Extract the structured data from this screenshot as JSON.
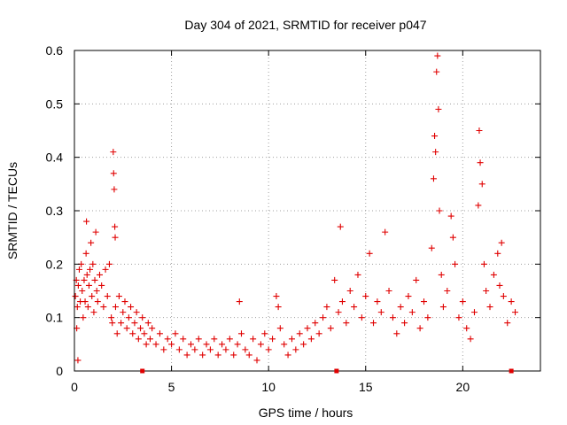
{
  "colors": {
    "series": "#e00000",
    "axis": "#000000",
    "grid": "#a0a0a0"
  },
  "chart_data": {
    "type": "scatter",
    "title": "Day 304 of 2021, SRMTID for receiver p047",
    "xlabel": "GPS time / hours",
    "ylabel": "SRMTID / TECUs",
    "xlim": [
      0,
      24
    ],
    "ylim": [
      0,
      0.6
    ],
    "xticks": [
      0,
      5,
      10,
      15,
      20
    ],
    "xtick_labels": [
      "0",
      "5",
      "10",
      "15",
      "20"
    ],
    "yticks": [
      0,
      0.1,
      0.2,
      0.3,
      0.4,
      0.5,
      0.6
    ],
    "ytick_labels": [
      "0",
      "0.1",
      "0.2",
      "0.3",
      "0.4",
      "0.5",
      "0.6"
    ],
    "grid": true,
    "marker": "plus",
    "series": [
      {
        "name": "SRMTID p047",
        "points": [
          [
            0.05,
            0.14
          ],
          [
            0.1,
            0.17
          ],
          [
            0.12,
            0.08
          ],
          [
            0.15,
            0.12
          ],
          [
            0.18,
            0.02
          ],
          [
            0.2,
            0.16
          ],
          [
            0.25,
            0.19
          ],
          [
            0.3,
            0.13
          ],
          [
            0.35,
            0.2
          ],
          [
            0.4,
            0.15
          ],
          [
            0.45,
            0.1
          ],
          [
            0.5,
            0.17
          ],
          [
            0.55,
            0.13
          ],
          [
            0.6,
            0.22
          ],
          [
            0.62,
            0.28
          ],
          [
            0.65,
            0.18
          ],
          [
            0.7,
            0.12
          ],
          [
            0.75,
            0.16
          ],
          [
            0.8,
            0.19
          ],
          [
            0.85,
            0.24
          ],
          [
            0.9,
            0.14
          ],
          [
            0.95,
            0.2
          ],
          [
            1.0,
            0.11
          ],
          [
            1.05,
            0.17
          ],
          [
            1.1,
            0.26
          ],
          [
            1.15,
            0.15
          ],
          [
            1.2,
            0.13
          ],
          [
            1.3,
            0.18
          ],
          [
            1.4,
            0.16
          ],
          [
            1.5,
            0.12
          ],
          [
            1.6,
            0.19
          ],
          [
            1.7,
            0.14
          ],
          [
            1.8,
            0.2
          ],
          [
            1.9,
            0.1
          ],
          [
            1.95,
            0.09
          ],
          [
            2.0,
            0.41
          ],
          [
            2.02,
            0.37
          ],
          [
            2.05,
            0.34
          ],
          [
            2.08,
            0.27
          ],
          [
            2.1,
            0.25
          ],
          [
            2.12,
            0.12
          ],
          [
            2.2,
            0.07
          ],
          [
            2.3,
            0.14
          ],
          [
            2.4,
            0.09
          ],
          [
            2.5,
            0.11
          ],
          [
            2.6,
            0.13
          ],
          [
            2.7,
            0.08
          ],
          [
            2.8,
            0.1
          ],
          [
            2.9,
            0.12
          ],
          [
            3.0,
            0.07
          ],
          [
            3.1,
            0.09
          ],
          [
            3.2,
            0.11
          ],
          [
            3.3,
            0.06
          ],
          [
            3.4,
            0.08
          ],
          [
            3.5,
            0.1
          ],
          [
            3.6,
            0.07
          ],
          [
            3.7,
            0.05
          ],
          [
            3.8,
            0.09
          ],
          [
            3.9,
            0.06
          ],
          [
            4.0,
            0.08
          ],
          [
            4.2,
            0.05
          ],
          [
            4.4,
            0.07
          ],
          [
            4.6,
            0.04
          ],
          [
            4.8,
            0.06
          ],
          [
            5.0,
            0.05
          ],
          [
            5.2,
            0.07
          ],
          [
            5.4,
            0.04
          ],
          [
            5.6,
            0.06
          ],
          [
            5.8,
            0.03
          ],
          [
            6.0,
            0.05
          ],
          [
            6.2,
            0.04
          ],
          [
            6.4,
            0.06
          ],
          [
            6.6,
            0.03
          ],
          [
            6.8,
            0.05
          ],
          [
            7.0,
            0.04
          ],
          [
            7.2,
            0.06
          ],
          [
            7.4,
            0.03
          ],
          [
            7.6,
            0.05
          ],
          [
            7.8,
            0.04
          ],
          [
            8.0,
            0.06
          ],
          [
            8.2,
            0.03
          ],
          [
            8.4,
            0.05
          ],
          [
            8.5,
            0.13
          ],
          [
            8.6,
            0.07
          ],
          [
            8.8,
            0.04
          ],
          [
            9.0,
            0.03
          ],
          [
            9.2,
            0.06
          ],
          [
            9.4,
            0.02
          ],
          [
            9.6,
            0.05
          ],
          [
            9.8,
            0.07
          ],
          [
            10.0,
            0.04
          ],
          [
            10.2,
            0.06
          ],
          [
            10.4,
            0.14
          ],
          [
            10.5,
            0.12
          ],
          [
            10.6,
            0.08
          ],
          [
            10.8,
            0.05
          ],
          [
            11.0,
            0.03
          ],
          [
            11.2,
            0.06
          ],
          [
            11.4,
            0.04
          ],
          [
            11.6,
            0.07
          ],
          [
            11.8,
            0.05
          ],
          [
            12.0,
            0.08
          ],
          [
            12.2,
            0.06
          ],
          [
            12.4,
            0.09
          ],
          [
            12.6,
            0.07
          ],
          [
            12.8,
            0.1
          ],
          [
            13.0,
            0.12
          ],
          [
            13.2,
            0.08
          ],
          [
            13.4,
            0.17
          ],
          [
            13.6,
            0.11
          ],
          [
            13.7,
            0.27
          ],
          [
            13.8,
            0.13
          ],
          [
            14.0,
            0.09
          ],
          [
            14.2,
            0.15
          ],
          [
            14.4,
            0.12
          ],
          [
            14.6,
            0.18
          ],
          [
            14.8,
            0.1
          ],
          [
            15.0,
            0.14
          ],
          [
            15.2,
            0.22
          ],
          [
            15.4,
            0.09
          ],
          [
            15.6,
            0.13
          ],
          [
            15.8,
            0.11
          ],
          [
            16.0,
            0.26
          ],
          [
            16.2,
            0.15
          ],
          [
            16.4,
            0.1
          ],
          [
            16.6,
            0.07
          ],
          [
            16.8,
            0.12
          ],
          [
            17.0,
            0.09
          ],
          [
            17.2,
            0.14
          ],
          [
            17.4,
            0.11
          ],
          [
            17.6,
            0.17
          ],
          [
            17.8,
            0.08
          ],
          [
            18.0,
            0.13
          ],
          [
            18.2,
            0.1
          ],
          [
            18.4,
            0.23
          ],
          [
            18.5,
            0.36
          ],
          [
            18.55,
            0.44
          ],
          [
            18.6,
            0.41
          ],
          [
            18.65,
            0.56
          ],
          [
            18.7,
            0.59
          ],
          [
            18.75,
            0.49
          ],
          [
            18.8,
            0.3
          ],
          [
            18.9,
            0.18
          ],
          [
            19.0,
            0.12
          ],
          [
            19.2,
            0.15
          ],
          [
            19.4,
            0.29
          ],
          [
            19.5,
            0.25
          ],
          [
            19.6,
            0.2
          ],
          [
            19.8,
            0.1
          ],
          [
            20.0,
            0.13
          ],
          [
            20.2,
            0.08
          ],
          [
            20.4,
            0.06
          ],
          [
            20.6,
            0.11
          ],
          [
            20.8,
            0.31
          ],
          [
            20.85,
            0.45
          ],
          [
            20.9,
            0.39
          ],
          [
            21.0,
            0.35
          ],
          [
            21.1,
            0.2
          ],
          [
            21.2,
            0.15
          ],
          [
            21.4,
            0.12
          ],
          [
            21.6,
            0.18
          ],
          [
            21.8,
            0.22
          ],
          [
            21.9,
            0.16
          ],
          [
            22.0,
            0.24
          ],
          [
            22.1,
            0.14
          ],
          [
            22.3,
            0.09
          ],
          [
            22.5,
            0.13
          ],
          [
            22.7,
            0.11
          ]
        ]
      }
    ],
    "axis_markers_x": [
      3.5,
      13.5,
      22.5
    ]
  }
}
